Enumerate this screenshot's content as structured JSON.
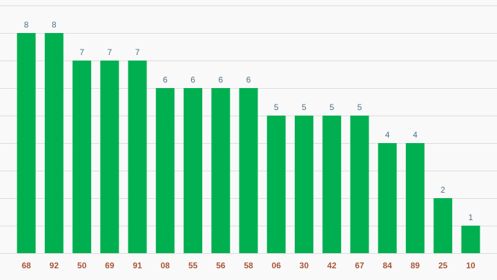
{
  "chart_data": {
    "type": "bar",
    "categories": [
      "68",
      "92",
      "50",
      "69",
      "91",
      "08",
      "55",
      "56",
      "58",
      "06",
      "30",
      "42",
      "67",
      "84",
      "89",
      "25",
      "10"
    ],
    "values": [
      8,
      8,
      7,
      7,
      7,
      6,
      6,
      6,
      6,
      5,
      5,
      5,
      5,
      4,
      4,
      2,
      1
    ],
    "title": "",
    "xlabel": "",
    "ylabel": "",
    "ylim": [
      0,
      9
    ],
    "grid": true,
    "legend": "none",
    "show_value_labels": true,
    "colors": {
      "bar": "#00b050",
      "grid": "#dcdcdc",
      "value_label": "#4f6f86",
      "category_label": "#a85538",
      "background": "#f9f9f9"
    }
  }
}
